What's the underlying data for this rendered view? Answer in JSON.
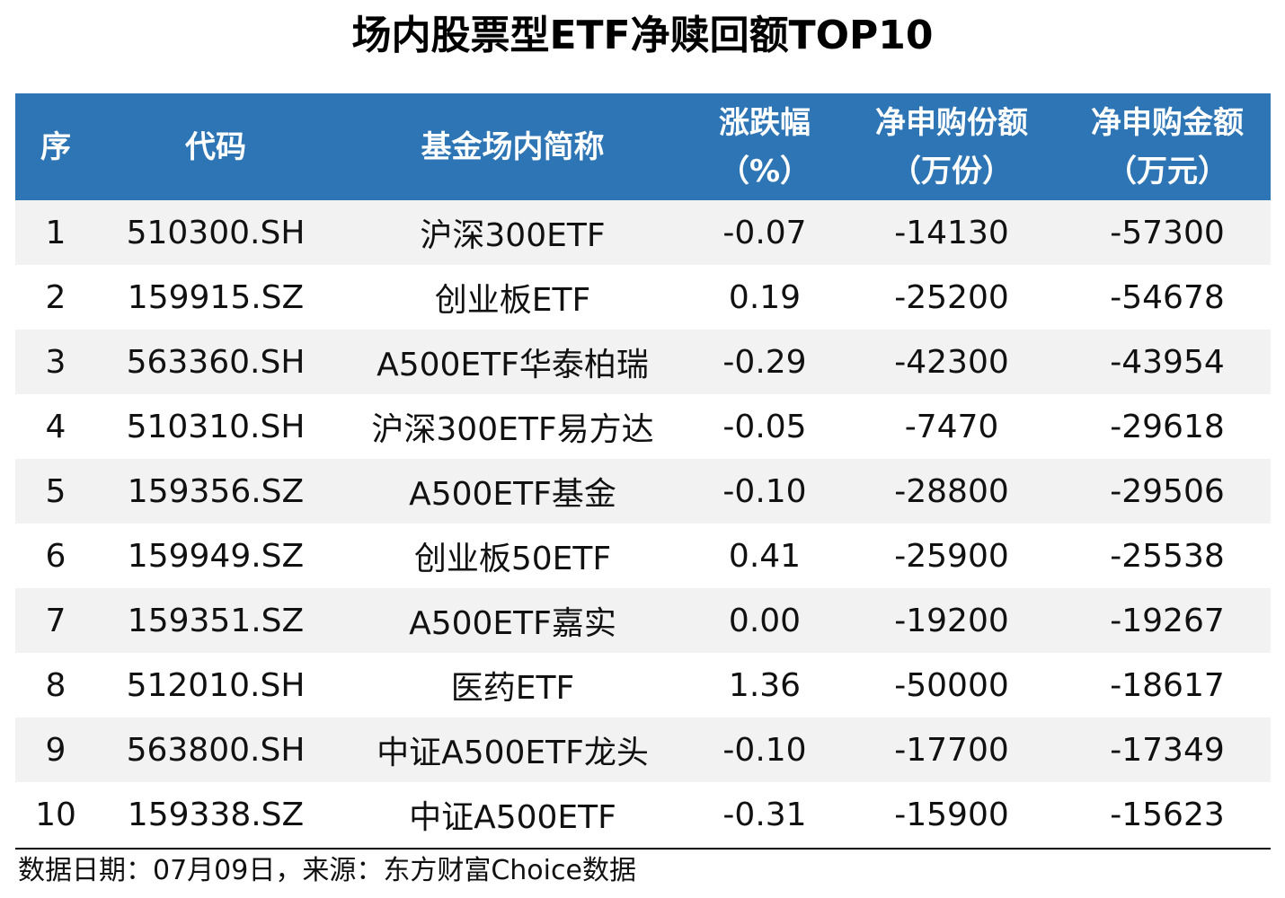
{
  "chart_data": {
    "type": "table",
    "title": "场内股票型ETF净赎回额TOP10",
    "columns": [
      [
        "序"
      ],
      [
        "代码"
      ],
      [
        "基金场内简称"
      ],
      [
        "涨跌幅",
        "（%）"
      ],
      [
        "净申购份额",
        "（万份）"
      ],
      [
        "净申购金额",
        "（万元）"
      ]
    ],
    "rows": [
      [
        "1",
        "510300.SH",
        "沪深300ETF",
        "-0.07",
        "-14130",
        "-57300"
      ],
      [
        "2",
        "159915.SZ",
        "创业板ETF",
        "0.19",
        "-25200",
        "-54678"
      ],
      [
        "3",
        "563360.SH",
        "A500ETF华泰柏瑞",
        "-0.29",
        "-42300",
        "-43954"
      ],
      [
        "4",
        "510310.SH",
        "沪深300ETF易方达",
        "-0.05",
        "-7470",
        "-29618"
      ],
      [
        "5",
        "159356.SZ",
        "A500ETF基金",
        "-0.10",
        "-28800",
        "-29506"
      ],
      [
        "6",
        "159949.SZ",
        "创业板50ETF",
        "0.41",
        "-25900",
        "-25538"
      ],
      [
        "7",
        "159351.SZ",
        "A500ETF嘉实",
        "0.00",
        "-19200",
        "-19267"
      ],
      [
        "8",
        "512010.SH",
        "医药ETF",
        "1.36",
        "-50000",
        "-18617"
      ],
      [
        "9",
        "563800.SH",
        "中证A500ETF龙头",
        "-0.10",
        "-17700",
        "-17349"
      ],
      [
        "10",
        "159338.SZ",
        "中证A500ETF",
        "-0.31",
        "-15900",
        "-15623"
      ]
    ],
    "footnote": "数据日期：07月09日，来源：东方财富Choice数据"
  },
  "colors": {
    "header_bg": "#2e75b6",
    "header_text": "#ffffff",
    "stripe_bg": "#f2f2f2"
  }
}
